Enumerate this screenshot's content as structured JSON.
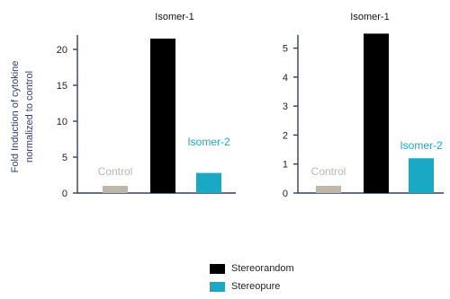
{
  "y_axis_label_line1": "Fold Induction of cytokine",
  "y_axis_label_line2": "normalized to control",
  "colors": {
    "axis": "#2f3f69",
    "control": "#bfb6a8",
    "stereorandom": "#000000",
    "stereopure": "#1aa9c4",
    "ticks": "#222222"
  },
  "legend": {
    "items": [
      {
        "label": "Stereorandom",
        "color": "#000000"
      },
      {
        "label": "Stereopure",
        "color": "#1aa9c4"
      }
    ]
  },
  "chart_data": [
    {
      "type": "bar",
      "categories": [
        "Control",
        "Isomer-1",
        "Isomer-2"
      ],
      "values": [
        1,
        21.5,
        2.8
      ],
      "ylim": [
        0,
        23
      ],
      "yticks": [
        0,
        5,
        10,
        15,
        20
      ],
      "ylabel": "Fold Induction of cytokine normalized to control",
      "bar_labels": [
        "Control",
        "Isomer-1",
        "Isomer-2"
      ],
      "bar_colors": [
        "#bfb6a8",
        "#000000",
        "#1aa9c4"
      ]
    },
    {
      "type": "bar",
      "categories": [
        "Control",
        "Isomer-1",
        "Isomer-2"
      ],
      "values": [
        0.25,
        5.5,
        1.2
      ],
      "ylim": [
        0,
        5.7
      ],
      "yticks": [
        0,
        1,
        2,
        3,
        4,
        5
      ],
      "bar_labels": [
        "Control",
        "Isomer-1",
        "Isomer-2"
      ],
      "bar_colors": [
        "#bfb6a8",
        "#000000",
        "#1aa9c4"
      ]
    }
  ]
}
